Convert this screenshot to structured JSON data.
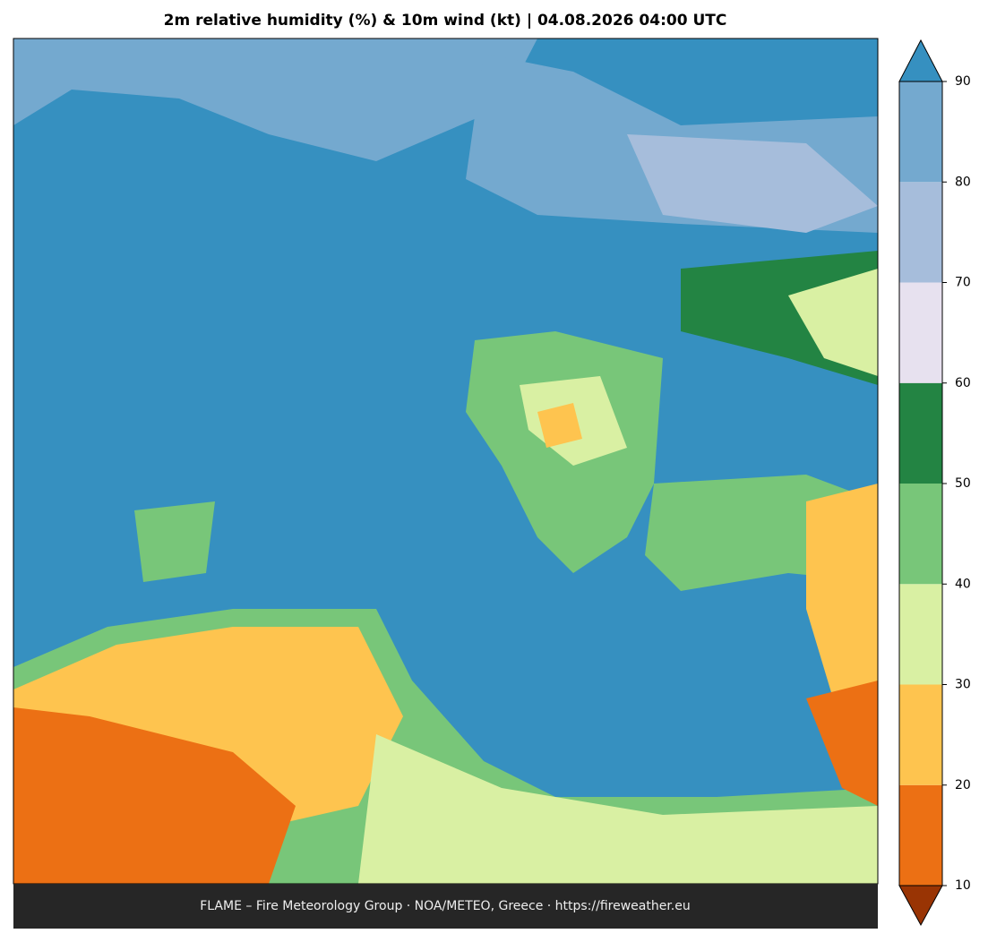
{
  "header": {
    "title": "2m relative humidity (%) & 10m wind (kt)  |  04.08.2026 04:00 UTC"
  },
  "colorbar": {
    "ticks": [
      10,
      20,
      30,
      40,
      50,
      60,
      70,
      80,
      90
    ],
    "colors": [
      "#ec7014",
      "#fec44f",
      "#d9f0a3",
      "#78c679",
      "#238443",
      "#e7e1ef",
      "#a6bddb",
      "#74a9cf"
    ],
    "under_color": "#993404",
    "over_color": "#3690c0"
  },
  "footer": {
    "text": "FLAME – Fire Meteorology Group · NOA/METEO, Greece · https://fireweather.eu"
  }
}
